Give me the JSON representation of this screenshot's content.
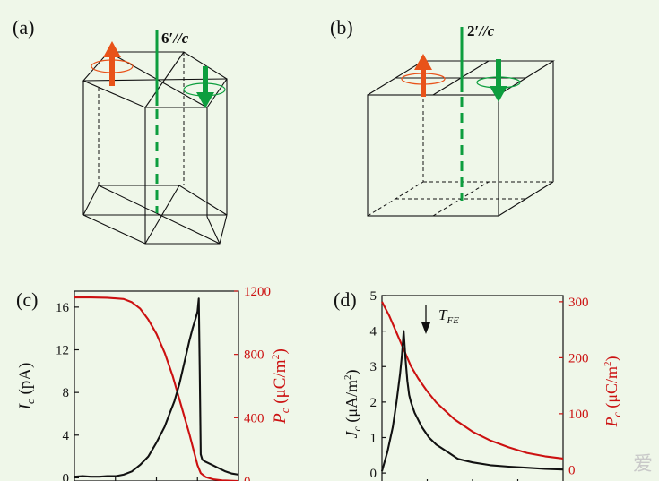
{
  "figure": {
    "panels": {
      "a": {
        "label": "(a)",
        "axis_label": "6′//c",
        "axis_fold": "6′",
        "axis_rel": "//c"
      },
      "b": {
        "label": "(b)",
        "axis_label": "2′//c",
        "axis_fold": "2′",
        "axis_rel": "//c"
      },
      "c": {
        "label": "(c)"
      },
      "d": {
        "label": "(d)",
        "annotation": "T_FE",
        "annotation_main": "T",
        "annotation_sub": "FE"
      }
    },
    "colors": {
      "red": "#cc1111",
      "green": "#0d9e3e",
      "orange": "#e8531a",
      "black": "#111111",
      "bg": "#eff7e9"
    },
    "watermark": "爱"
  },
  "chart_data": [
    {
      "id": "c",
      "type": "line",
      "title": "",
      "xlabel": "",
      "ylabel_left": "I_c (pA)",
      "ylabel_left_main": "I",
      "ylabel_left_sub": "c",
      "ylabel_left_unit": " (pA)",
      "ylabel_right": "P_c (μC/m²)",
      "ylabel_right_main": "P",
      "ylabel_right_sub": "c",
      "ylabel_right_unit_a": " (μC/m",
      "ylabel_right_unit_sup": "2",
      "ylabel_right_unit_b": ")",
      "xlim": [
        0,
        100
      ],
      "ylim_left": [
        -0.3,
        17.5
      ],
      "ylim_right": [
        0,
        1200
      ],
      "yticks_left": [
        0,
        4,
        8,
        12,
        16
      ],
      "yticks_right": [
        0,
        400,
        800,
        1200
      ],
      "series": [
        {
          "name": "I_c",
          "axis": "left",
          "color": "#111111",
          "x": [
            0,
            5,
            10,
            15,
            20,
            25,
            30,
            35,
            40,
            45,
            50,
            55,
            58,
            61,
            64,
            67,
            70,
            72,
            74,
            75,
            75.8,
            76.4,
            77,
            78,
            80,
            84,
            88,
            92,
            96,
            100
          ],
          "y": [
            0.1,
            0.15,
            0.1,
            0.1,
            0.15,
            0.15,
            0.3,
            0.6,
            1.2,
            2.0,
            3.3,
            4.8,
            6.0,
            7.2,
            8.8,
            10.8,
            12.8,
            14.0,
            15.0,
            15.6,
            16.8,
            10.0,
            2.2,
            1.7,
            1.5,
            1.2,
            0.9,
            0.6,
            0.4,
            0.3
          ]
        },
        {
          "name": "P_c",
          "axis": "right",
          "color": "#cc1111",
          "x": [
            0,
            10,
            20,
            30,
            35,
            40,
            45,
            50,
            55,
            60,
            65,
            70,
            73,
            75,
            77,
            80,
            85,
            90,
            100
          ],
          "y": [
            1160,
            1160,
            1158,
            1150,
            1130,
            1090,
            1020,
            930,
            810,
            660,
            480,
            300,
            180,
            100,
            50,
            25,
            10,
            4,
            0
          ]
        }
      ]
    },
    {
      "id": "d",
      "type": "line",
      "title": "",
      "xlabel": "",
      "ylabel_left": "J_c (μA/m²)",
      "ylabel_left_main": "J",
      "ylabel_left_sub": "c",
      "ylabel_left_unit_a": " (μA/m",
      "ylabel_left_unit_sup": "2",
      "ylabel_left_unit_b": ")",
      "ylabel_right": "P_c (μC/m²)",
      "ylabel_right_main": "P",
      "ylabel_right_sub": "c",
      "ylabel_right_unit_a": " (μC/m",
      "ylabel_right_unit_sup": "2",
      "ylabel_right_unit_b": ")",
      "xlim": [
        0,
        100
      ],
      "ylim_left": [
        -0.3,
        5
      ],
      "ylim_right": [
        -25,
        311
      ],
      "yticks_left": [
        0,
        1,
        2,
        3,
        4,
        5
      ],
      "yticks_right": [
        0,
        100,
        200,
        300
      ],
      "series": [
        {
          "name": "J_c",
          "axis": "left",
          "color": "#111111",
          "x": [
            0,
            3,
            6,
            8,
            10,
            11,
            12,
            13,
            14,
            15,
            16,
            18,
            22,
            26,
            30,
            36,
            42,
            50,
            60,
            70,
            80,
            90,
            100
          ],
          "y": [
            0.05,
            0.6,
            1.3,
            2.0,
            2.8,
            3.3,
            4.0,
            3.2,
            2.6,
            2.2,
            2.0,
            1.7,
            1.3,
            1.0,
            0.8,
            0.6,
            0.4,
            0.3,
            0.22,
            0.18,
            0.15,
            0.12,
            0.1
          ]
        },
        {
          "name": "P_c",
          "axis": "right",
          "color": "#cc1111",
          "x": [
            0,
            4,
            8,
            12,
            16,
            20,
            25,
            30,
            40,
            50,
            60,
            70,
            80,
            90,
            100
          ],
          "y": [
            300,
            275,
            245,
            215,
            185,
            163,
            140,
            120,
            90,
            68,
            52,
            40,
            30,
            24,
            20
          ]
        }
      ],
      "annotations": [
        {
          "text": "T_FE",
          "x": 12.5,
          "arrow": "down"
        }
      ]
    }
  ]
}
